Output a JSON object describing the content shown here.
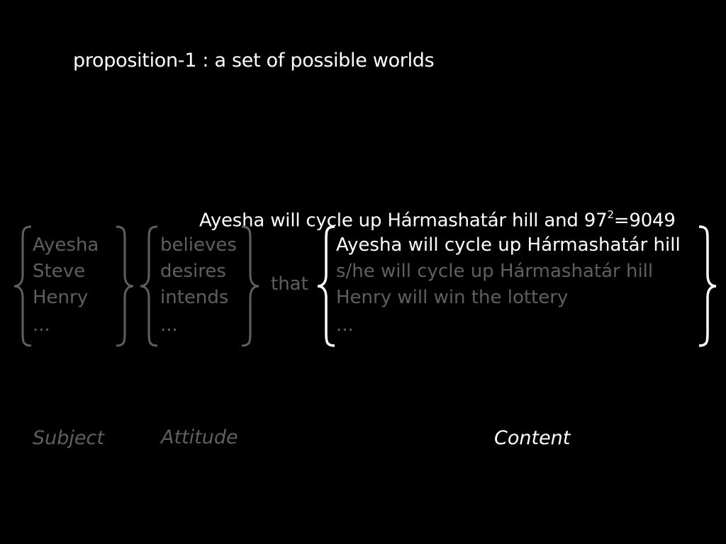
{
  "title": "proposition-1 : a set of possible worlds",
  "top_content": {
    "prefix": "Ayesha will cycle up Hármashatár hill and 97",
    "superscript": "2",
    "suffix": "=9049"
  },
  "subjects": [
    "Ayesha",
    "Steve",
    "Henry",
    "..."
  ],
  "attitudes": [
    "believes",
    "desires",
    "intends",
    "..."
  ],
  "connector": "that",
  "contents": [
    "Ayesha will cycle up Hármashatár hill",
    "s/he will cycle up Hármashatár hill",
    "Henry will win the lottery",
    "..."
  ],
  "labels": {
    "subject": "Subject",
    "attitude": "Attitude",
    "content": "Content"
  },
  "colors": {
    "background": "#000000",
    "highlight": "#ffffff",
    "dimmed": "#5f5f5f"
  }
}
